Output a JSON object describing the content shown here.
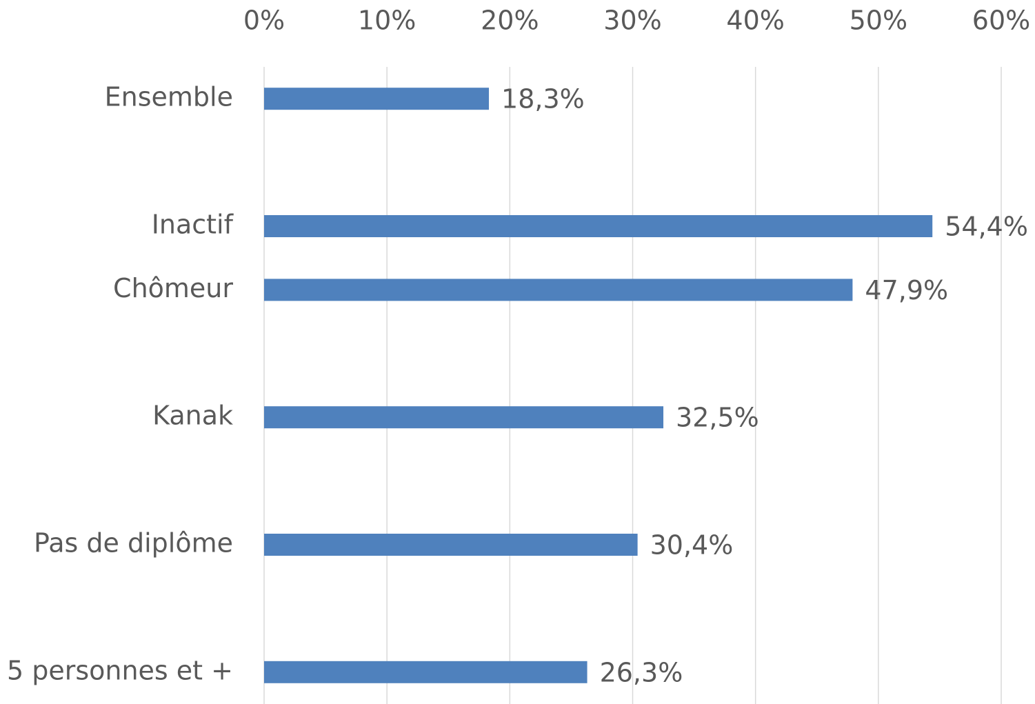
{
  "chart_data": {
    "type": "bar",
    "orientation": "horizontal",
    "categories": [
      "Ensemble",
      null,
      "Inactif",
      "Chômeur",
      null,
      "Kanak",
      null,
      "Pas de diplôme",
      null,
      "5 personnes et +"
    ],
    "values": [
      18.3,
      null,
      54.4,
      47.9,
      null,
      32.5,
      null,
      30.4,
      null,
      26.3
    ],
    "value_labels": [
      "18,3%",
      null,
      "54,4%",
      "47,9%",
      null,
      "32,5%",
      null,
      "30,4%",
      null,
      "26,3%"
    ],
    "color": "#4f81bd",
    "xlim": [
      0,
      60
    ],
    "xticks": [
      {
        "value": 0,
        "label": "0%"
      },
      {
        "value": 10,
        "label": "10%"
      },
      {
        "value": 20,
        "label": "20%"
      },
      {
        "value": 30,
        "label": "30%"
      },
      {
        "value": 40,
        "label": "40%"
      },
      {
        "value": 50,
        "label": "50%"
      },
      {
        "value": 60,
        "label": "60%"
      }
    ],
    "grid": true
  }
}
